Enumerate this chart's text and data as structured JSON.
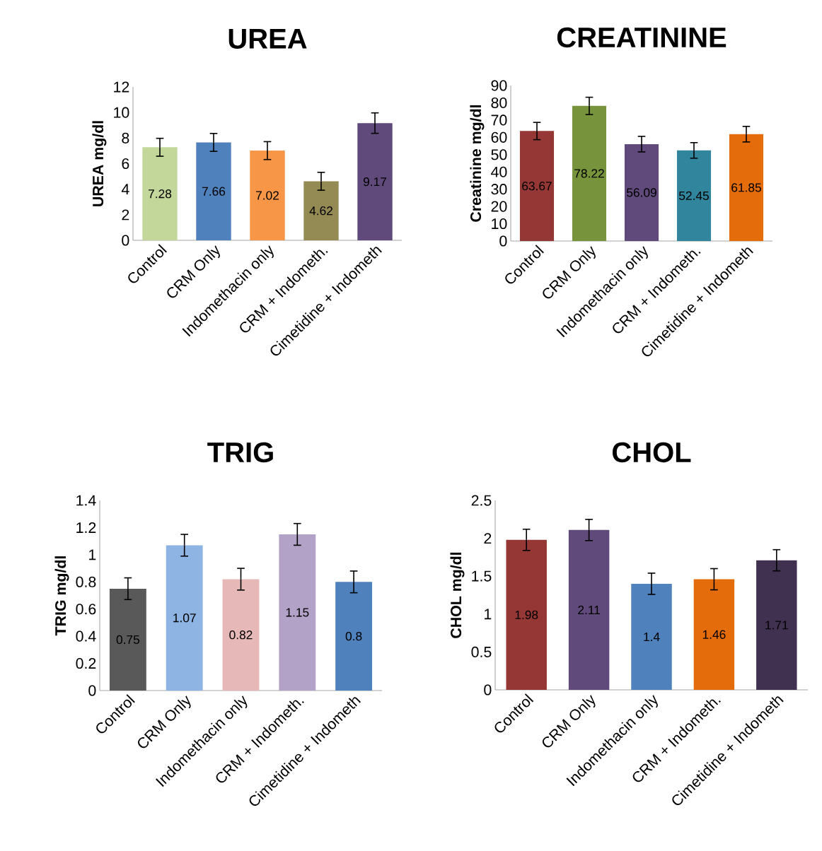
{
  "chart_data": [
    {
      "type": "bar",
      "title": "UREA",
      "ylabel": "UREA mg/dl",
      "categories": [
        "Control",
        "CRM Only",
        "Indomethacin only",
        "CRM + Indometh.",
        "Cimetidine + Indometh"
      ],
      "values": [
        7.28,
        7.66,
        7.02,
        4.62,
        9.17
      ],
      "errors": [
        0.7,
        0.7,
        0.7,
        0.7,
        0.8
      ],
      "colors": [
        "#c4d79b",
        "#4f81bd",
        "#f79646",
        "#948a54",
        "#604a7b"
      ],
      "ylim": [
        0,
        12
      ],
      "yticks": [
        0,
        2,
        4,
        6,
        8,
        10,
        12
      ],
      "data_labels": true
    },
    {
      "type": "bar",
      "title": "CREATININE",
      "ylabel": "Creatinine mg/dl",
      "categories": [
        "Control",
        "CRM Only",
        "Indomethacin only",
        "CRM + Indometh.",
        "Cimetidine + Indometh"
      ],
      "values": [
        63.67,
        78.22,
        56.09,
        52.45,
        61.85
      ],
      "errors": [
        5,
        5,
        4.5,
        4.5,
        4.5
      ],
      "colors": [
        "#953735",
        "#77933c",
        "#604a7b",
        "#31859c",
        "#e46c0a"
      ],
      "ylim": [
        0,
        90
      ],
      "yticks": [
        0,
        10,
        20,
        30,
        40,
        50,
        60,
        70,
        80,
        90
      ],
      "data_labels": true
    },
    {
      "type": "bar",
      "title": "TRIG",
      "ylabel": "TRIG mg/dl",
      "categories": [
        "Control",
        "CRM Only",
        "Indomethacin only",
        "CRM + Indometh.",
        "Cimetidine + Indometh"
      ],
      "values": [
        0.75,
        1.07,
        0.82,
        1.15,
        0.8
      ],
      "errors": [
        0.08,
        0.08,
        0.08,
        0.08,
        0.08
      ],
      "colors": [
        "#595959",
        "#8db4e2",
        "#e6b9b8",
        "#b3a2c7",
        "#4f81bd"
      ],
      "ylim": [
        0,
        1.4
      ],
      "yticks": [
        0,
        0.2,
        0.4,
        0.6,
        0.8,
        1,
        1.2,
        1.4
      ],
      "data_labels": true
    },
    {
      "type": "bar",
      "title": "CHOL",
      "ylabel": "CHOL mg/dl",
      "categories": [
        "Control",
        "CRM Only",
        "Indomethacin only",
        "CRM + Indometh.",
        "Cimetidine + Indometh"
      ],
      "values": [
        1.98,
        2.11,
        1.4,
        1.46,
        1.71
      ],
      "errors": [
        0.14,
        0.14,
        0.14,
        0.14,
        0.14
      ],
      "colors": [
        "#953735",
        "#604a7b",
        "#4f81bd",
        "#e46c0a",
        "#403151"
      ],
      "ylim": [
        0,
        2.5
      ],
      "yticks": [
        0,
        0.5,
        1,
        1.5,
        2,
        2.5
      ],
      "data_labels": true
    }
  ]
}
